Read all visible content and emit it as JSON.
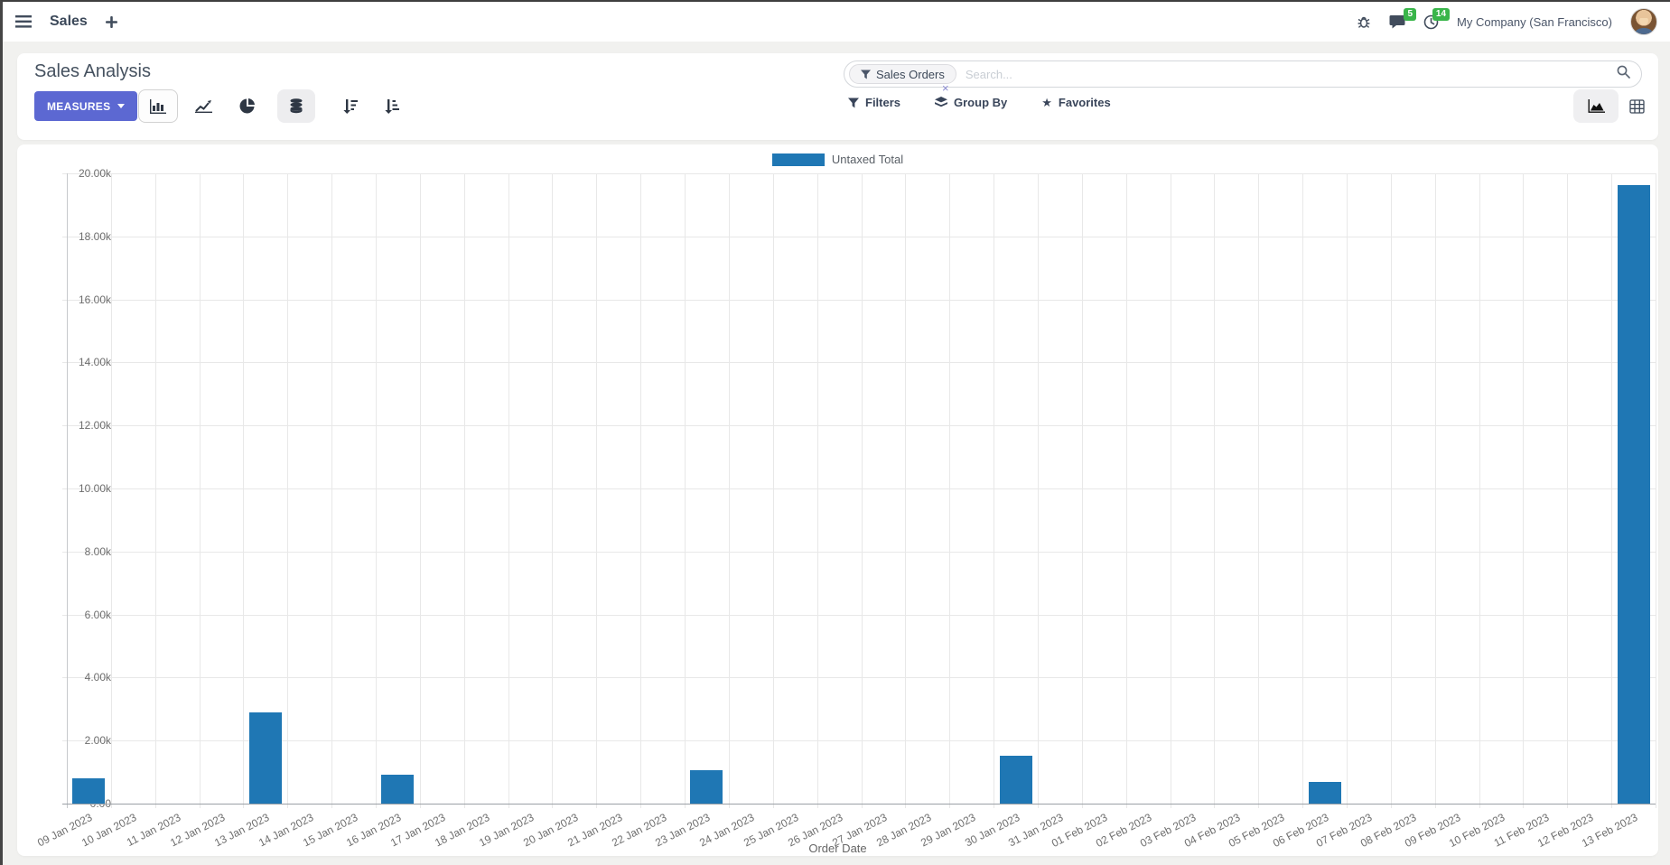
{
  "navbar": {
    "app_name": "Sales",
    "company": "My Company (San Francisco)",
    "messages_badge": "5",
    "activities_badge": "14"
  },
  "control_panel": {
    "title": "Sales Analysis",
    "measures_label": "MEASURES",
    "search": {
      "facet": "Sales Orders",
      "placeholder": "Search...",
      "remove_icon": "×"
    },
    "menus": {
      "filters": "Filters",
      "group_by": "Group By",
      "favorites": "Favorites"
    }
  },
  "colors": {
    "accent": "#5C68D2",
    "bar": "#1f77b4",
    "badge_green": "#39b54a"
  },
  "chart_data": {
    "type": "bar",
    "title": "",
    "xlabel": "Order Date",
    "ylabel": "",
    "ylim": [
      0,
      20000
    ],
    "ytick_step": 2000,
    "ytick_labels": [
      "0.00",
      "2.00k",
      "4.00k",
      "6.00k",
      "8.00k",
      "10.00k",
      "12.00k",
      "14.00k",
      "16.00k",
      "18.00k",
      "20.00k"
    ],
    "grid": true,
    "legend_position": "top",
    "categories": [
      "09 Jan 2023",
      "10 Jan 2023",
      "11 Jan 2023",
      "12 Jan 2023",
      "13 Jan 2023",
      "14 Jan 2023",
      "15 Jan 2023",
      "16 Jan 2023",
      "17 Jan 2023",
      "18 Jan 2023",
      "19 Jan 2023",
      "20 Jan 2023",
      "21 Jan 2023",
      "22 Jan 2023",
      "23 Jan 2023",
      "24 Jan 2023",
      "25 Jan 2023",
      "26 Jan 2023",
      "27 Jan 2023",
      "28 Jan 2023",
      "29 Jan 2023",
      "30 Jan 2023",
      "31 Jan 2023",
      "01 Feb 2023",
      "02 Feb 2023",
      "03 Feb 2023",
      "04 Feb 2023",
      "05 Feb 2023",
      "06 Feb 2023",
      "07 Feb 2023",
      "08 Feb 2023",
      "09 Feb 2023",
      "10 Feb 2023",
      "11 Feb 2023",
      "12 Feb 2023",
      "13 Feb 2023"
    ],
    "series": [
      {
        "name": "Untaxed Total",
        "color": "#1f77b4",
        "values": [
          800,
          0,
          0,
          0,
          2900,
          0,
          0,
          930,
          0,
          0,
          0,
          0,
          0,
          0,
          1070,
          0,
          0,
          0,
          0,
          0,
          0,
          1520,
          0,
          0,
          0,
          0,
          0,
          0,
          680,
          0,
          0,
          0,
          0,
          0,
          0,
          19620
        ]
      }
    ]
  }
}
